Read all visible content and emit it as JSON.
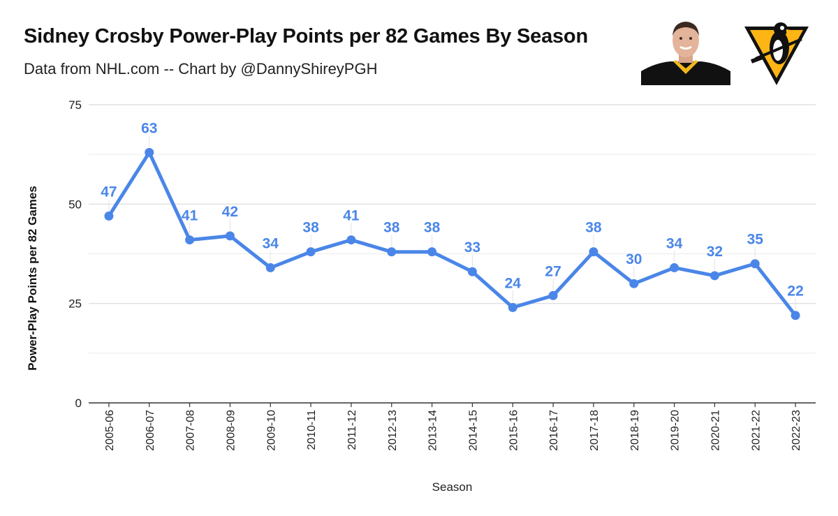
{
  "header": {
    "title": "Sidney Crosby Power-Play Points per 82 Games By Season",
    "subtitle": "Data from NHL.com -- Chart by @DannyShireyPGH"
  },
  "images": {
    "player_photo": "player-headshot",
    "team_logo": "pittsburgh-penguins-logo"
  },
  "colors": {
    "line": "#4a86e8",
    "grid": "#d9d9d9",
    "axis": "#333333"
  },
  "chart_data": {
    "type": "line",
    "title": "Sidney Crosby Power-Play Points per 82 Games By Season",
    "xlabel": "Season",
    "ylabel": "Power-Play Points per 82 Games",
    "ylim": [
      0,
      75
    ],
    "yticks": [
      0,
      25,
      50,
      75
    ],
    "grid": true,
    "legend": "none",
    "categories": [
      "2005-06",
      "2006-07",
      "2007-08",
      "2008-09",
      "2009-10",
      "2010-11",
      "2011-12",
      "2012-13",
      "2013-14",
      "2014-15",
      "2015-16",
      "2016-17",
      "2017-18",
      "2018-19",
      "2019-20",
      "2020-21",
      "2021-22",
      "2022-23"
    ],
    "series": [
      {
        "values": [
          47,
          63,
          41,
          42,
          34,
          38,
          41,
          38,
          38,
          33,
          24,
          27,
          38,
          30,
          34,
          32,
          35,
          22
        ]
      }
    ]
  }
}
